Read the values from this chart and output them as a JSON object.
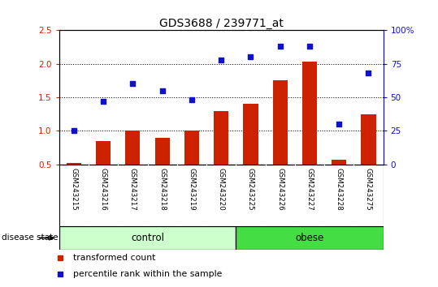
{
  "title": "GDS3688 / 239771_at",
  "samples": [
    "GSM243215",
    "GSM243216",
    "GSM243217",
    "GSM243218",
    "GSM243219",
    "GSM243220",
    "GSM243225",
    "GSM243226",
    "GSM243227",
    "GSM243228",
    "GSM243275"
  ],
  "bar_values": [
    0.52,
    0.85,
    1.0,
    0.9,
    1.0,
    1.3,
    1.4,
    1.75,
    2.03,
    0.57,
    1.25
  ],
  "dot_values": [
    25,
    47,
    60,
    55,
    48,
    78,
    80,
    88,
    88,
    30,
    68
  ],
  "ylim_left": [
    0.5,
    2.5
  ],
  "ylim_right": [
    0,
    100
  ],
  "yticks_left": [
    0.5,
    1.0,
    1.5,
    2.0,
    2.5
  ],
  "yticks_right": [
    0,
    25,
    50,
    75,
    100
  ],
  "ytick_labels_right": [
    "0",
    "25",
    "50",
    "75",
    "100%"
  ],
  "hlines": [
    1.0,
    1.5,
    2.0
  ],
  "bar_color": "#cc2200",
  "dot_color": "#1111cc",
  "bar_bottom": 0.5,
  "control_color": "#ccffcc",
  "obese_color": "#44dd44",
  "tick_area_color": "#cccccc",
  "legend_items": [
    {
      "label": "transformed count",
      "color": "#cc2200"
    },
    {
      "label": "percentile rank within the sample",
      "color": "#1111cc"
    }
  ],
  "left_axis_color": "#cc2200",
  "right_axis_color": "#1111cc",
  "n_control": 6,
  "n_obese": 5
}
